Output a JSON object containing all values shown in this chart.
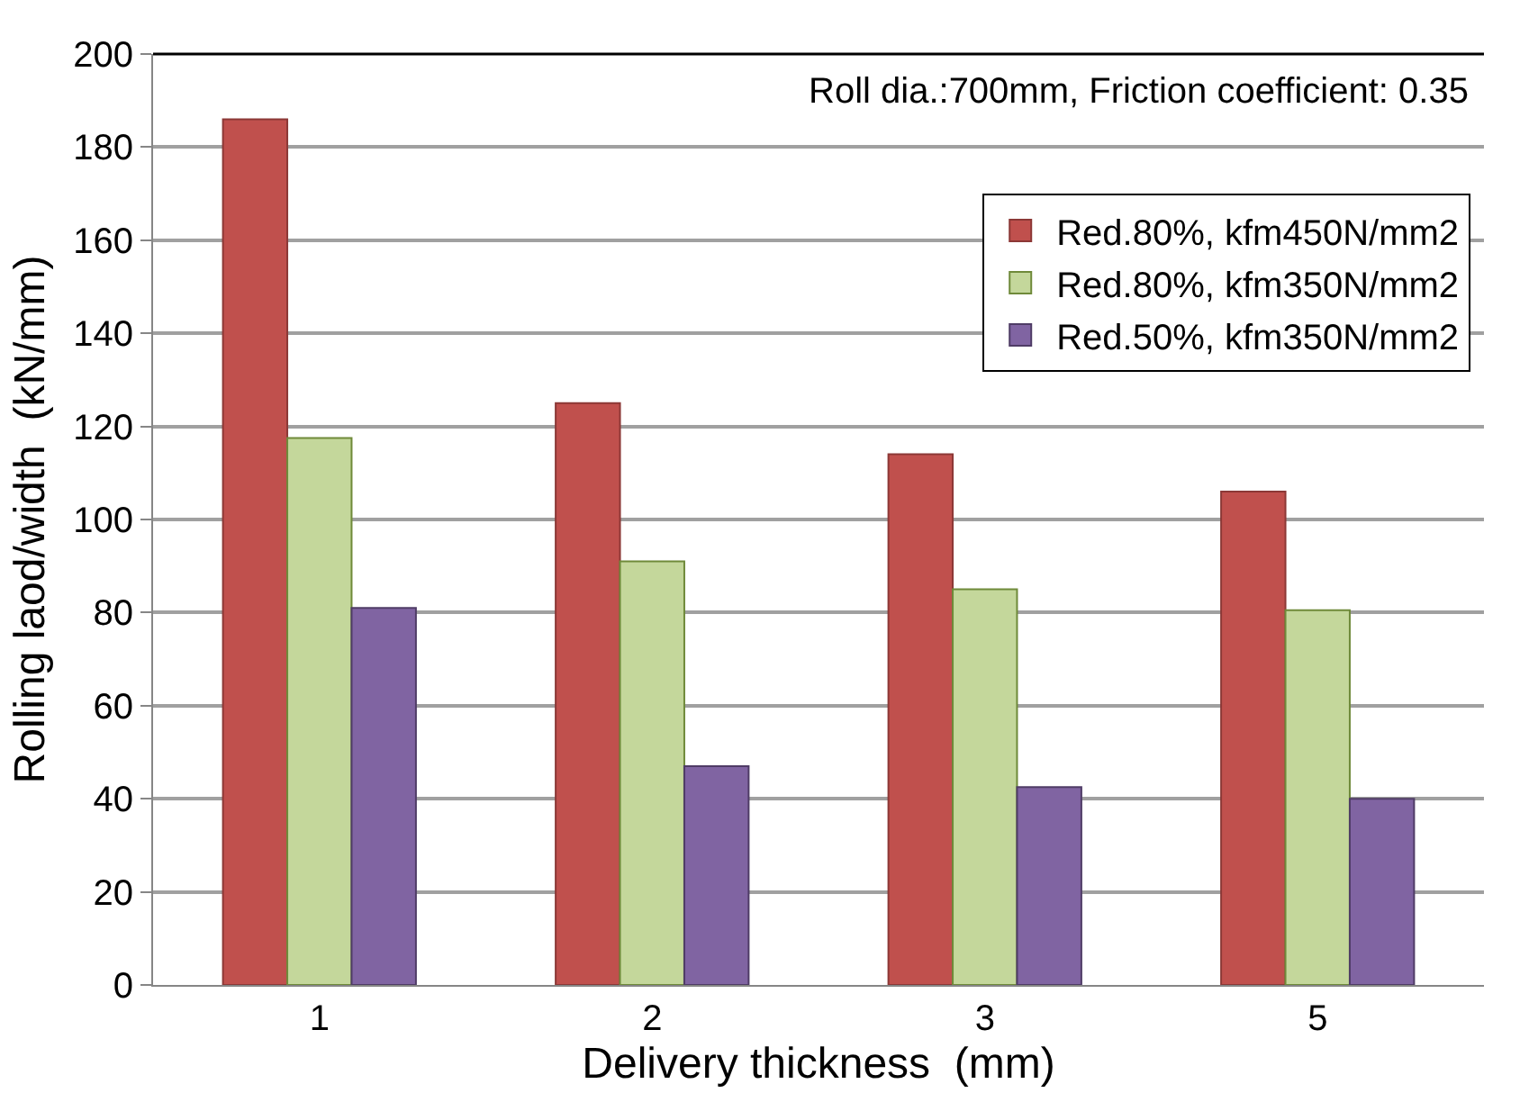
{
  "chart_data": {
    "type": "bar",
    "xlabel": "Delivery thickness  (mm)",
    "ylabel": "Rolling laod/width  (kN/mm)",
    "categories": [
      "1",
      "2",
      "3",
      "5"
    ],
    "series": [
      {
        "name": "Red.80%, kfm450N/mm2",
        "color": "#c0504d",
        "values": [
          186,
          125,
          114,
          106
        ]
      },
      {
        "name": "Red.80%, kfm350N/mm2",
        "color": "#c4d79b",
        "values": [
          117.5,
          91,
          85,
          80.5
        ]
      },
      {
        "name": "Red.50%, kfm350N/mm2",
        "color": "#8064a2",
        "values": [
          81,
          47,
          42.5,
          40
        ]
      }
    ],
    "ylim": [
      0,
      200
    ],
    "yticks": [
      0,
      20,
      40,
      60,
      80,
      100,
      120,
      140,
      160,
      180,
      200
    ],
    "grid": "y",
    "legend": "top right",
    "annotations": [
      "Roll dia.:700mm, Friction coefficient: 0.35"
    ]
  }
}
